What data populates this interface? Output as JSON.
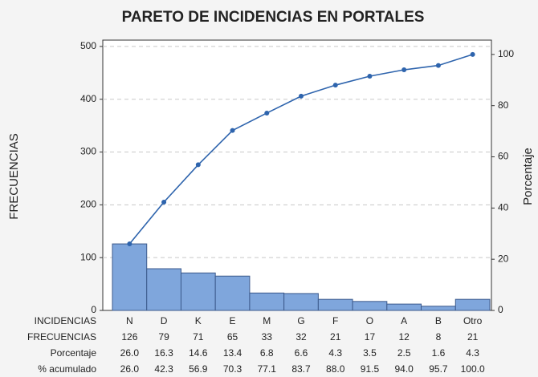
{
  "chart_data": {
    "type": "bar",
    "title": "PARETO DE INCIDENCIAS EN PORTALES",
    "y_label": "FRECUENCIAS",
    "y2_label": "Porcentaje",
    "categories_label": "INCIDENCIAS",
    "categories": [
      "N",
      "D",
      "K",
      "E",
      "M",
      "G",
      "F",
      "O",
      "A",
      "B",
      "Otro"
    ],
    "series": [
      {
        "name": "FRECUENCIAS",
        "color": "#7fa6dc",
        "values": [
          126,
          79,
          71,
          65,
          33,
          32,
          21,
          17,
          12,
          8,
          21
        ]
      },
      {
        "name": "Porcentaje",
        "values": [
          26.0,
          16.3,
          14.6,
          13.4,
          6.8,
          6.6,
          4.3,
          3.5,
          2.5,
          1.6,
          4.3
        ],
        "value_labels": [
          "26.0",
          "16.3",
          "14.6",
          "13.4",
          "6.8",
          "6.6",
          "4.3",
          "3.5",
          "2.5",
          "1.6",
          "4.3"
        ]
      },
      {
        "name": "% acumulado",
        "axis": "y2",
        "color": "#2e64ad",
        "values": [
          26.0,
          42.3,
          56.9,
          70.3,
          77.1,
          83.7,
          88.0,
          91.5,
          94.0,
          95.7,
          100.0
        ],
        "value_labels": [
          "26.0",
          "42.3",
          "56.9",
          "70.3",
          "77.1",
          "83.7",
          "88.0",
          "91.5",
          "94.0",
          "95.7",
          "100.0"
        ]
      }
    ],
    "ylim": [
      0,
      512
    ],
    "yticks": [
      0,
      100,
      200,
      300,
      400,
      500
    ],
    "y2lim": [
      0,
      105.6
    ],
    "y2ticks": [
      0,
      20,
      40,
      60,
      80,
      100
    ],
    "grid": true
  }
}
